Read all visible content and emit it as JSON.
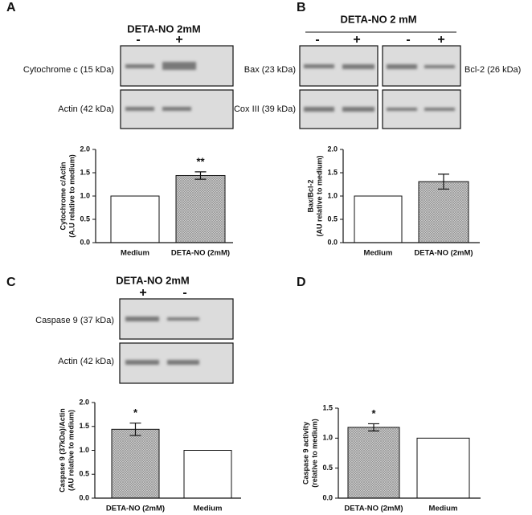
{
  "panels": [
    "A",
    "B",
    "C",
    "D"
  ],
  "blots": [
    {
      "treatment": "DETA-NO 2mM",
      "lanes": [
        "-",
        "+"
      ],
      "labels_left": [
        "Cytochrome c (15 kDa)",
        "Actin (42 kDa)"
      ]
    },
    {
      "treatment": "DETA-NO 2 mM",
      "lanes": [
        "-",
        "+",
        "-",
        "+"
      ],
      "labels_left": [
        "Bax (23 kDa)",
        "Cox III (39 kDa)"
      ],
      "labels_right": [
        "Bcl-2 (26 kDa)"
      ]
    },
    {
      "treatment": "DETA-NO 2mM",
      "lanes": [
        "+",
        "-"
      ],
      "labels_left": [
        "Caspase 9 (37 kDa)",
        "Actin (42 kDa)"
      ]
    }
  ],
  "chart_data": [
    {
      "type": "bar",
      "categories": [
        "Medium",
        "DETA-NO (2mM)"
      ],
      "values": [
        1.0,
        1.44
      ],
      "errors": [
        null,
        0.08
      ],
      "fills": [
        "#ffffff",
        "hatch"
      ],
      "annotations": [
        null,
        "**"
      ],
      "ylabel": [
        "Cytochrome c/Actin",
        "(A.U relative to medium)"
      ],
      "ylim": [
        0,
        2
      ],
      "yticks": [
        {
          "value": 0,
          "label": "0.0"
        },
        0.5,
        {
          "value": 1,
          "label": "1.0"
        },
        1.5,
        {
          "value": 2,
          "label": "2.0"
        }
      ]
    },
    {
      "type": "bar",
      "categories": [
        "Medium",
        "DETA-NO (2mM)"
      ],
      "values": [
        1.0,
        1.31
      ],
      "errors": [
        null,
        0.16
      ],
      "fills": [
        "#ffffff",
        "hatch"
      ],
      "annotations": [
        null,
        null
      ],
      "ylabel": [
        "Bax/Bcl-2",
        "(AU relative to medium)"
      ],
      "ylim": [
        0,
        2
      ],
      "yticks": [
        {
          "value": 0,
          "label": "0.0"
        },
        0.5,
        {
          "value": 1,
          "label": "1.0"
        },
        1.5,
        {
          "value": 2,
          "label": "2.0"
        }
      ]
    },
    {
      "type": "bar",
      "categories": [
        "DETA-NO (2mM)",
        "Medium"
      ],
      "values": [
        1.44,
        1.0
      ],
      "errors": [
        0.13,
        null
      ],
      "fills": [
        "hatch",
        "#ffffff"
      ],
      "annotations": [
        "*",
        null
      ],
      "ylabel": [
        "Caspase 9 (37kDa)/Actin",
        "(AU relative to medium)"
      ],
      "ylim": [
        0,
        2
      ],
      "yticks": [
        {
          "value": 0,
          "label": "0.0"
        },
        0.5,
        {
          "value": 1,
          "label": "1.0"
        },
        1.5,
        {
          "value": 2,
          "label": "2.0"
        }
      ]
    },
    {
      "type": "bar",
      "categories": [
        "DETA-NO (2mM)",
        "Medium"
      ],
      "values": [
        1.18,
        1.0
      ],
      "errors": [
        0.06,
        null
      ],
      "fills": [
        "hatch",
        "#ffffff"
      ],
      "annotations": [
        "*",
        null
      ],
      "ylabel": [
        "Caspase 9 activity",
        "(relative to medium)"
      ],
      "ylim": [
        0,
        1.5
      ],
      "yticks": [
        {
          "value": 0,
          "label": "0.0"
        },
        0.5,
        {
          "value": 1,
          "label": "1.0"
        },
        1.5
      ]
    }
  ]
}
